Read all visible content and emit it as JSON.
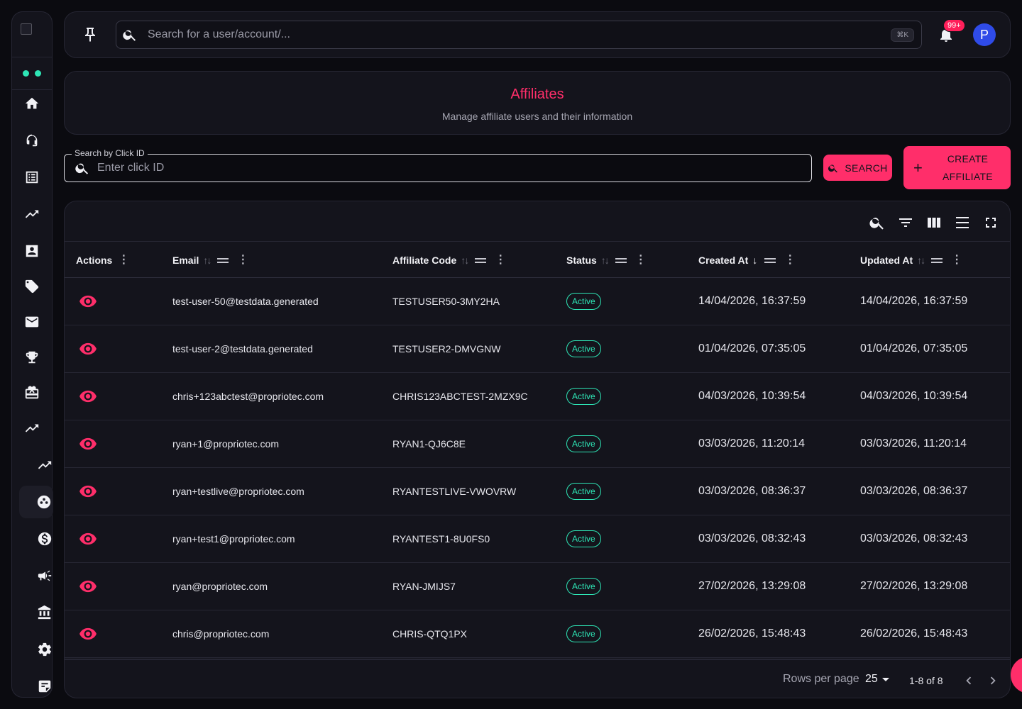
{
  "search": {
    "placeholder": "Search for a user/account/...",
    "shortcut": "⌘K"
  },
  "notifications": {
    "count": "99+"
  },
  "user": {
    "initial": "P"
  },
  "header": {
    "title": "Affiliates",
    "subtitle": "Manage affiliate users and their information"
  },
  "click_search": {
    "label": "Search by Click ID",
    "placeholder": "Enter click ID",
    "button": "SEARCH"
  },
  "create_button": {
    "line1": "CREATE",
    "line2": "AFFILIATE"
  },
  "table": {
    "columns": {
      "actions": "Actions",
      "email": "Email",
      "affiliate_code": "Affiliate Code",
      "status": "Status",
      "created_at": "Created At",
      "updated_at": "Updated At"
    },
    "rows": [
      {
        "email": "test-user-50@testdata.generated",
        "code": "TESTUSER50-3MY2HA",
        "status": "Active",
        "created": "14/04/2026, 16:37:59",
        "updated": "14/04/2026, 16:37:59"
      },
      {
        "email": "test-user-2@testdata.generated",
        "code": "TESTUSER2-DMVGNW",
        "status": "Active",
        "created": "01/04/2026, 07:35:05",
        "updated": "01/04/2026, 07:35:05"
      },
      {
        "email": "chris+123abctest@propriotec.com",
        "code": "CHRIS123ABCTEST-2MZX9C",
        "status": "Active",
        "created": "04/03/2026, 10:39:54",
        "updated": "04/03/2026, 10:39:54"
      },
      {
        "email": "ryan+1@propriotec.com",
        "code": "RYAN1-QJ6C8E",
        "status": "Active",
        "created": "03/03/2026, 11:20:14",
        "updated": "03/03/2026, 11:20:14"
      },
      {
        "email": "ryan+testlive@propriotec.com",
        "code": "RYANTESTLIVE-VWOVRW",
        "status": "Active",
        "created": "03/03/2026, 08:36:37",
        "updated": "03/03/2026, 08:36:37"
      },
      {
        "email": "ryan+test1@propriotec.com",
        "code": "RYANTEST1-8U0FS0",
        "status": "Active",
        "created": "03/03/2026, 08:32:43",
        "updated": "03/03/2026, 08:32:43"
      },
      {
        "email": "ryan@propriotec.com",
        "code": "RYAN-JMIJS7",
        "status": "Active",
        "created": "27/02/2026, 13:29:08",
        "updated": "27/02/2026, 13:29:08"
      },
      {
        "email": "chris@propriotec.com",
        "code": "CHRIS-QTQ1PX",
        "status": "Active",
        "created": "26/02/2026, 15:48:43",
        "updated": "26/02/2026, 15:48:43"
      }
    ]
  },
  "pagination": {
    "rows_per_page_label": "Rows per page",
    "rows_per_page": "25",
    "range": "1-8 of 8"
  },
  "sidebar": {
    "items": [
      {
        "icon": "home-icon"
      },
      {
        "icon": "support-icon"
      },
      {
        "icon": "list-icon"
      },
      {
        "icon": "trending-up-icon"
      },
      {
        "icon": "contact-card-icon"
      },
      {
        "icon": "tag-icon"
      },
      {
        "icon": "mail-icon"
      },
      {
        "icon": "trophy-icon"
      },
      {
        "icon": "gift-icon"
      },
      {
        "icon": "trending-up-icon"
      },
      {
        "icon": "trending-up-icon"
      },
      {
        "icon": "affiliates-icon",
        "active": true
      },
      {
        "icon": "dollar-icon"
      },
      {
        "icon": "megaphone-icon"
      },
      {
        "icon": "bank-icon"
      },
      {
        "icon": "settings-icon"
      },
      {
        "icon": "notes-icon"
      }
    ]
  },
  "colors": {
    "accent": "#ff2e6a",
    "status_active": "#2ee6b6",
    "background": "#0b0b10",
    "card": "#14141c",
    "avatar": "#2f4be8"
  }
}
